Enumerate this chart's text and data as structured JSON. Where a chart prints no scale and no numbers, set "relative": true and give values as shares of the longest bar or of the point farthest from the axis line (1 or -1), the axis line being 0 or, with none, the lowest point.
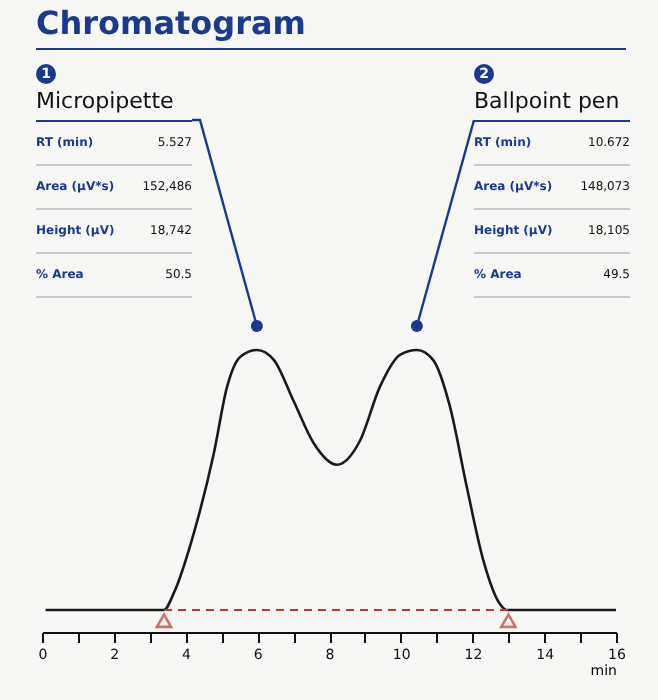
{
  "chart_data": {
    "type": "line",
    "title": "Chromatogram",
    "xlabel": "min",
    "relative": true,
    "xlim": [
      0,
      16
    ],
    "xticks": [
      0,
      {
        "value": 1,
        "label": null
      },
      2,
      {
        "value": 3,
        "label": null
      },
      4,
      {
        "value": 5,
        "label": null
      },
      6,
      {
        "value": 7,
        "label": null
      },
      8,
      {
        "value": 9,
        "label": null
      },
      10,
      {
        "value": 11,
        "label": null
      },
      12,
      {
        "value": 13,
        "label": null
      },
      14,
      {
        "value": 15,
        "label": null
      },
      16
    ],
    "series": [
      {
        "color": "#1a1a1a",
        "x": [
          0.1,
          1.5,
          3.0,
          3.4,
          3.67,
          4.23,
          4.79,
          5.16,
          5.53,
          5.99,
          6.46,
          7.01,
          7.57,
          8.22,
          8.87,
          9.42,
          9.98,
          10.45,
          10.9,
          11.37,
          11.84,
          12.3,
          12.76,
          12.95,
          14.5,
          16.0
        ],
        "values": [
          0.078,
          0.078,
          0.078,
          0.078,
          0.137,
          0.35,
          0.634,
          0.87,
          0.976,
          1,
          0.965,
          0.82,
          0.67,
          0.593,
          0.68,
          0.87,
          0.983,
          1,
          0.965,
          0.8,
          0.515,
          0.255,
          0.1,
          0.078,
          0.078,
          0.078
        ]
      },
      {
        "type": "line",
        "line_style": "dashed",
        "color": "#c0392b",
        "x": [
          3.4,
          13.0
        ],
        "values": [
          0.078,
          0.078
        ]
      },
      {
        "type": "scatter",
        "marker": "triangle",
        "color": "#c0392b",
        "x": [
          3.4,
          13.0
        ],
        "values": [
          0.04,
          0.04
        ]
      }
    ],
    "annotations": [
      "1",
      "Micropipette",
      "RT (min)",
      "5.527",
      "Area (µV*s)",
      "152,486",
      "Height (µV)",
      "18,742",
      "% Area",
      "50.5",
      "2",
      "Ballpoint pen",
      "RT (min)",
      "10.672",
      "Area (µV*s)",
      "148,073",
      "Height (µV)",
      "18,105",
      "% Area",
      "49.5"
    ]
  }
}
